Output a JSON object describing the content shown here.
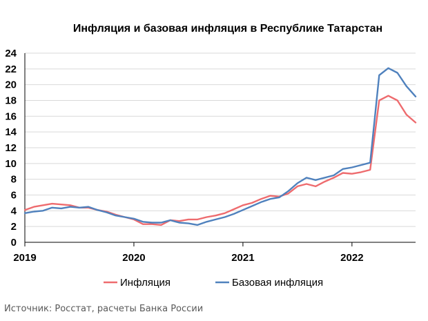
{
  "chart_data": {
    "type": "line",
    "title": "Инфляция и базовая инфляция в Республике Татарстан",
    "ylim": [
      0,
      24
    ],
    "yticks": [
      0,
      2,
      4,
      6,
      8,
      10,
      12,
      14,
      16,
      18,
      20,
      22,
      24
    ],
    "xlim": [
      0,
      43
    ],
    "xtick_labels": [
      {
        "x": 0,
        "label": "2019"
      },
      {
        "x": 12,
        "label": "2020"
      },
      {
        "x": 24,
        "label": "2021"
      },
      {
        "x": 36,
        "label": "2022"
      }
    ],
    "legend_position": "bottom",
    "series": [
      {
        "name": "Инфляция",
        "color": "#ee6b6e",
        "values": [
          4.1,
          4.5,
          4.7,
          4.9,
          4.8,
          4.7,
          4.4,
          4.4,
          4.1,
          3.9,
          3.5,
          3.2,
          2.9,
          2.3,
          2.3,
          2.2,
          2.8,
          2.7,
          2.9,
          2.9,
          3.2,
          3.4,
          3.7,
          4.2,
          4.7,
          5.0,
          5.5,
          5.9,
          5.8,
          6.2,
          7.1,
          7.4,
          7.1,
          7.7,
          8.2,
          8.8,
          8.7,
          8.9,
          9.2,
          18.0,
          18.6,
          18.0,
          16.2,
          15.2
        ]
      },
      {
        "name": "Базовая инфляция",
        "color": "#4f81bd",
        "values": [
          3.7,
          3.9,
          4.0,
          4.4,
          4.3,
          4.5,
          4.4,
          4.5,
          4.1,
          3.8,
          3.4,
          3.2,
          3.0,
          2.6,
          2.5,
          2.5,
          2.8,
          2.5,
          2.4,
          2.2,
          2.6,
          2.9,
          3.2,
          3.6,
          4.1,
          4.6,
          5.1,
          5.5,
          5.7,
          6.5,
          7.5,
          8.2,
          7.9,
          8.2,
          8.5,
          9.3,
          9.5,
          9.8,
          10.1,
          21.2,
          22.1,
          21.5,
          19.8,
          18.5
        ]
      }
    ]
  },
  "source": "Источник: Росстат, расчеты Банка России"
}
